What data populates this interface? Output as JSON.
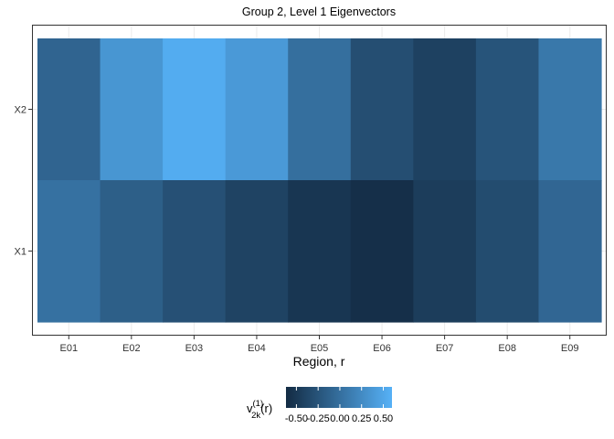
{
  "chart_data": {
    "type": "heatmap",
    "title": "Group 2, Level 1 Eigenvectors",
    "xlabel": "Region, r",
    "ylabel": "",
    "x_categories": [
      "E01",
      "E02",
      "E03",
      "E04",
      "E05",
      "E06",
      "E07",
      "E08",
      "E09"
    ],
    "y_categories": [
      "X1",
      "X2"
    ],
    "rows": [
      {
        "name": "X2",
        "values": [
          -0.1,
          0.35,
          0.55,
          0.38,
          0.0,
          -0.3,
          -0.42,
          -0.25,
          0.08
        ]
      },
      {
        "name": "X1",
        "values": [
          0.02,
          -0.15,
          -0.28,
          -0.4,
          -0.52,
          -0.58,
          -0.46,
          -0.32,
          -0.08
        ]
      }
    ],
    "value_range": [
      -0.62,
      0.6
    ],
    "color_low": "#132B43",
    "color_high": "#56B1F7",
    "legend": {
      "title_main": "v",
      "title_superscript": "(1)",
      "title_subscript": "2k",
      "title_suffix": "(r)",
      "ticks": [
        -0.5,
        -0.25,
        0.0,
        0.25,
        0.5
      ],
      "tick_labels": [
        "-0.50",
        "-0.25",
        "0.00",
        "0.25",
        "0.50"
      ],
      "position": "bottom"
    },
    "grid": true,
    "panel_border": true
  }
}
